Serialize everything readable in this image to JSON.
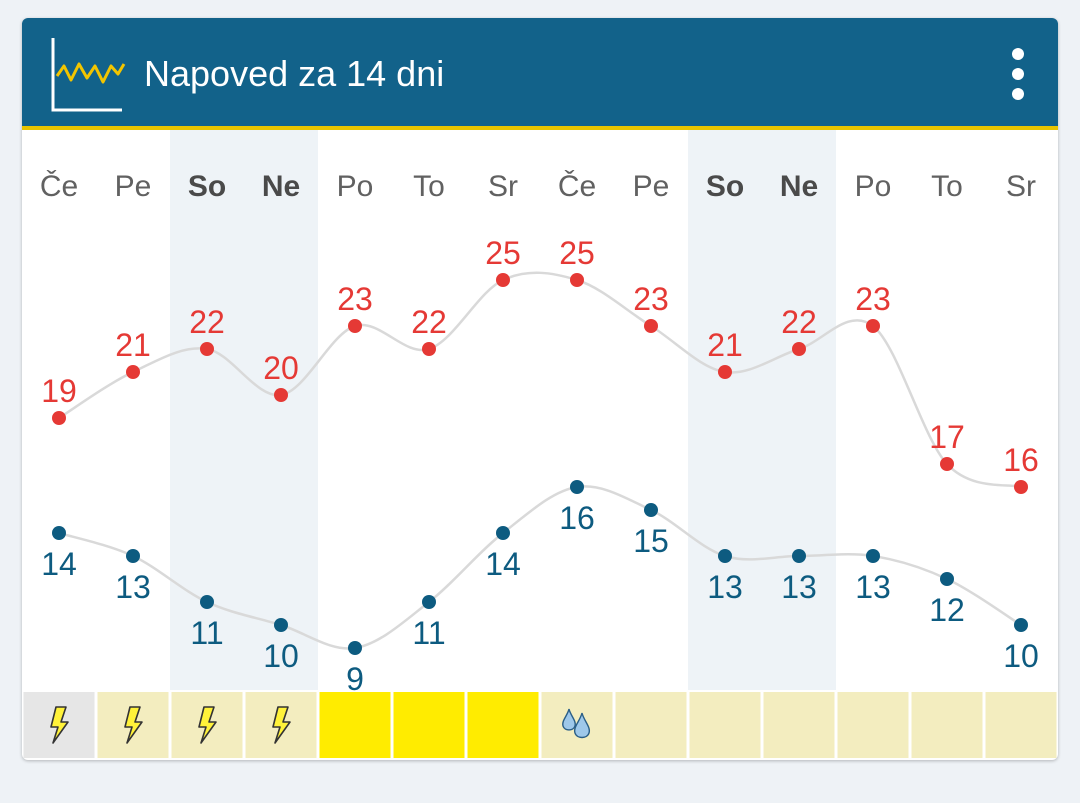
{
  "widget": {
    "title": "Napoved za 14 dni",
    "icon": "line-chart-icon",
    "menu_icon": "more-vert-icon"
  },
  "colors": {
    "header": "#12628a",
    "header_accent": "#e8c400",
    "high": "#e53935",
    "low": "#0d5b80",
    "line": "#d9d9d9",
    "weekend_band": "#eef3f7",
    "strip_pale": "#f3edbf",
    "strip_bright": "#ffec00",
    "strip_grey": "#e6e6e6"
  },
  "chart_data": {
    "type": "line",
    "categories": [
      "Če",
      "Pe",
      "So",
      "Ne",
      "Po",
      "To",
      "Sr",
      "Če",
      "Pe",
      "So",
      "Ne",
      "Po",
      "To",
      "Sr"
    ],
    "weekend": [
      false,
      false,
      true,
      true,
      false,
      false,
      false,
      false,
      false,
      true,
      true,
      false,
      false,
      false
    ],
    "series": [
      {
        "values": [
          19,
          21,
          22,
          20,
          23,
          22,
          25,
          25,
          23,
          21,
          22,
          23,
          17,
          16
        ]
      },
      {
        "values": [
          14,
          13,
          11,
          10,
          9,
          11,
          14,
          16,
          15,
          13,
          13,
          13,
          12,
          10
        ]
      }
    ],
    "ylim": [
      9,
      25
    ],
    "conditions": [
      {
        "icon": "thunder-icon",
        "bg": "grey"
      },
      {
        "icon": "thunder-icon",
        "bg": "pale"
      },
      {
        "icon": "thunder-icon",
        "bg": "pale"
      },
      {
        "icon": "thunder-icon",
        "bg": "pale"
      },
      {
        "icon": "",
        "bg": "bright"
      },
      {
        "icon": "",
        "bg": "bright"
      },
      {
        "icon": "",
        "bg": "bright"
      },
      {
        "icon": "rain-drops-icon",
        "bg": "pale"
      },
      {
        "icon": "",
        "bg": "pale"
      },
      {
        "icon": "",
        "bg": "pale"
      },
      {
        "icon": "",
        "bg": "pale"
      },
      {
        "icon": "",
        "bg": "pale"
      },
      {
        "icon": "",
        "bg": "pale"
      },
      {
        "icon": "",
        "bg": "pale"
      }
    ]
  }
}
